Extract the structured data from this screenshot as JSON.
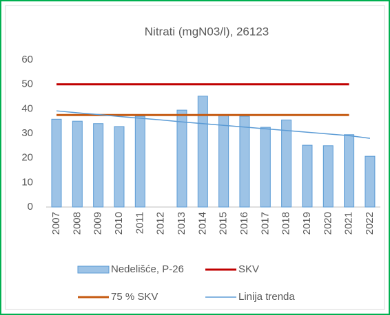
{
  "chart_data": {
    "type": "bar",
    "title": "Nitrati (mgN03/l), 26123",
    "categories": [
      "2007",
      "2008",
      "2009",
      "2010",
      "2011",
      "2012",
      "2013",
      "2014",
      "2015",
      "2016",
      "2017",
      "2018",
      "2019",
      "2020",
      "2021",
      "2022"
    ],
    "ylim": [
      0,
      60
    ],
    "yticks": [
      0,
      10,
      20,
      30,
      40,
      50,
      60
    ],
    "grid": false,
    "series": [
      {
        "name": "Nedelišće, P-26",
        "type": "bar",
        "color": "#9dc3e6",
        "values": [
          35.8,
          35,
          34,
          32.8,
          37,
          null,
          39.5,
          45.2,
          37.5,
          37,
          32.5,
          35.5,
          25.2,
          25,
          29.5,
          20.7
        ]
      },
      {
        "name": "SKV",
        "type": "line",
        "color": "#c00000",
        "values": [
          50,
          50,
          50,
          50,
          50,
          50,
          50,
          50,
          50,
          50,
          50,
          50,
          50,
          50,
          50,
          null
        ]
      },
      {
        "name": "75 % SKV",
        "type": "line",
        "color": "#c55a11",
        "values": [
          37.5,
          37.5,
          37.5,
          37.5,
          37.5,
          37.5,
          37.5,
          37.5,
          37.5,
          37.5,
          37.5,
          37.5,
          37.5,
          37.5,
          37.5,
          null
        ]
      },
      {
        "name": "Linija trenda",
        "type": "line",
        "color": "#5b9bd5",
        "values": [
          39.2,
          38.4,
          37.7,
          36.9,
          36.2,
          35.5,
          34.7,
          34.0,
          33.3,
          32.6,
          31.9,
          31.2,
          30.5,
          29.8,
          29.1,
          28.0
        ]
      }
    ]
  }
}
